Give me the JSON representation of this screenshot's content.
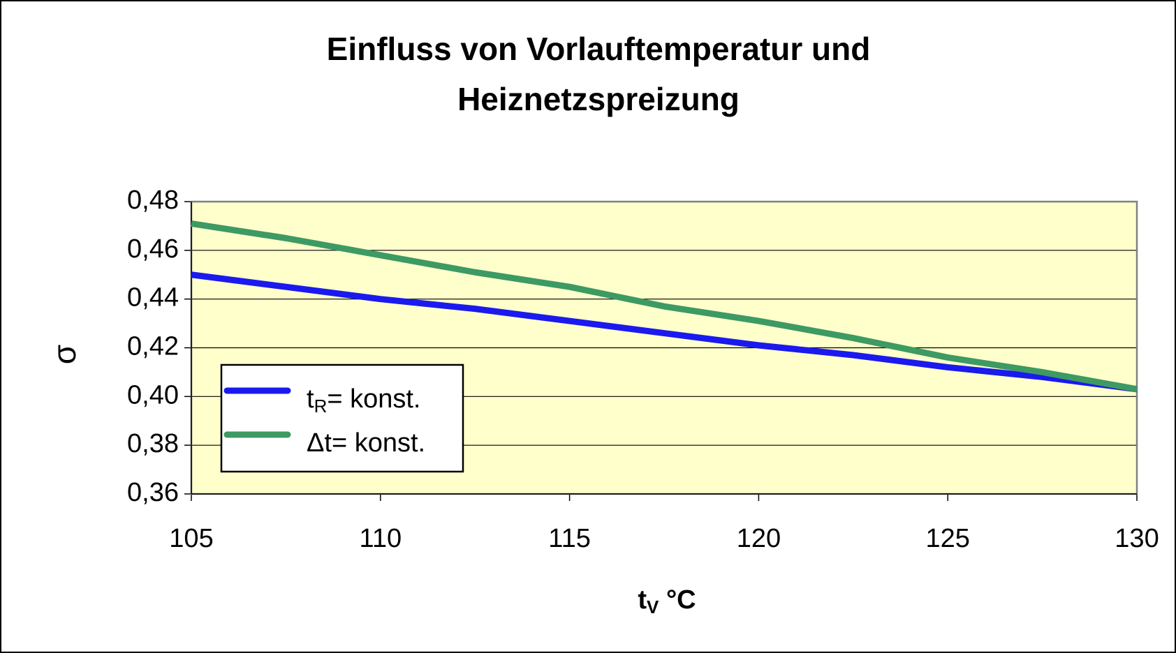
{
  "chart_data": {
    "type": "line",
    "title": [
      "Einfluss von Vorlauftemperatur und",
      "Heiznetzspreizung"
    ],
    "x_label": [
      "t",
      "V",
      " °C"
    ],
    "y_label": "σ",
    "x": [
      105,
      107.5,
      110,
      112.5,
      115,
      117.5,
      120,
      122.5,
      125,
      127.5,
      130
    ],
    "series": [
      {
        "name": [
          "t",
          "R",
          "= konst."
        ],
        "color": "#1a1aee",
        "values": [
          0.45,
          0.445,
          0.44,
          0.436,
          0.431,
          0.426,
          0.421,
          0.417,
          0.412,
          0.408,
          0.403
        ]
      },
      {
        "name": [
          "Δt= konst."
        ],
        "color": "#3d9a62",
        "values": [
          0.471,
          0.465,
          0.458,
          0.451,
          0.445,
          0.437,
          0.431,
          0.424,
          0.416,
          0.41,
          0.403
        ]
      }
    ],
    "xlim": [
      105,
      130
    ],
    "xticks": [
      105,
      110,
      115,
      120,
      125,
      130
    ],
    "ylim": [
      0.36,
      0.48
    ],
    "yticks": [
      {
        "value": 0.36,
        "label": "0,36"
      },
      {
        "value": 0.38,
        "label": "0,38"
      },
      {
        "value": 0.4,
        "label": "0,40"
      },
      {
        "value": 0.42,
        "label": "0,42"
      },
      {
        "value": 0.44,
        "label": "0,44"
      },
      {
        "value": 0.46,
        "label": "0,46"
      },
      {
        "value": 0.48,
        "label": "0,48"
      }
    ],
    "grid": true,
    "legend": "lower left",
    "plot_background": "#ffffcc"
  }
}
